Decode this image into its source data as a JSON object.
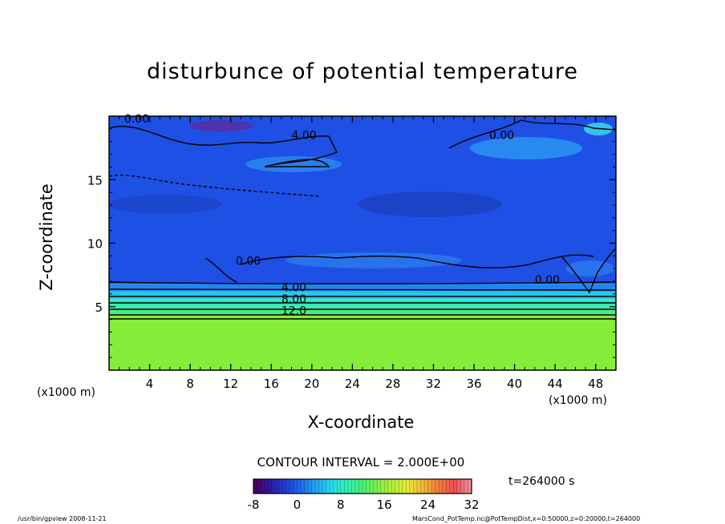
{
  "chart_data": {
    "type": "heatmap",
    "title": "disturbunce of potential temperature",
    "xlabel": "X-coordinate",
    "ylabel": "Z-coordinate",
    "x_unit_label": "(x1000 m)",
    "x_ticks": [
      "4",
      "8",
      "12",
      "16",
      "20",
      "24",
      "28",
      "32",
      "36",
      "40",
      "44",
      "48"
    ],
    "y_ticks": [
      "5",
      "10",
      "15"
    ],
    "xlim": [
      0,
      50
    ],
    "ylim": [
      0,
      20
    ],
    "contour_labels": [
      {
        "text": "0.00",
        "x": 1.5,
        "z": 19.5
      },
      {
        "text": "4.00",
        "x": 18.0,
        "z": 18.2
      },
      {
        "text": "0.00",
        "x": 37.5,
        "z": 18.2
      },
      {
        "text": "0.00",
        "x": 12.5,
        "z": 8.3
      },
      {
        "text": "0.00",
        "x": 42.0,
        "z": 6.8
      },
      {
        "text": "4.00",
        "x": 17.0,
        "z": 6.2
      },
      {
        "text": "8.00",
        "x": 17.0,
        "z": 5.3
      },
      {
        "text": "12.0",
        "x": 17.0,
        "z": 4.4
      }
    ],
    "contour_interval": "CONTOUR INTERVAL = 2.000E+00",
    "time_label": "t=264000 s",
    "colorbar": {
      "range": [
        -8,
        32
      ],
      "tick_labels": [
        "-8",
        "0",
        "8",
        "16",
        "24",
        "32"
      ],
      "colors": [
        "#4a0060",
        "#2e1aa0",
        "#1f3fd8",
        "#1f6cf0",
        "#21a8f2",
        "#26dcea",
        "#33f0b0",
        "#4af07a",
        "#7ff04a",
        "#b6ef3c",
        "#e8e83a",
        "#f0b636",
        "#ef7a3a",
        "#f04e52",
        "#f08a9a"
      ]
    },
    "field_bands": [
      {
        "z_top": 20.0,
        "z_bottom": 6.8,
        "value": -1.0,
        "color": "#1f50e6"
      },
      {
        "z_top": 6.8,
        "z_bottom": 6.2,
        "value": 2.0,
        "color": "#1f86f0"
      },
      {
        "z_top": 6.2,
        "z_bottom": 5.6,
        "value": 5.0,
        "color": "#26c8ea"
      },
      {
        "z_top": 5.6,
        "z_bottom": 5.0,
        "value": 8.0,
        "color": "#2fe8c2"
      },
      {
        "z_top": 5.0,
        "z_bottom": 4.4,
        "value": 11.0,
        "color": "#45ec8a"
      },
      {
        "z_top": 4.4,
        "z_bottom": 0.0,
        "value": 14.0,
        "color": "#86ee3a"
      }
    ]
  },
  "footer": {
    "left": "/usr/bin/gpview   2008-11-21",
    "right": "MarsCond_PotTemp.nc@PotTempDist,x=0:50000,z=0:20000,t=264000"
  }
}
